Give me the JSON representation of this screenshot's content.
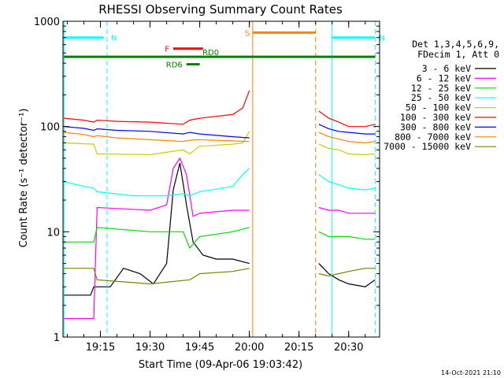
{
  "chart_data": {
    "type": "line",
    "title": "RHESSI Observing Summary Count Rates",
    "xlabel": "Start Time (09-Apr-06 19:03:42)",
    "ylabel": "Count Rate (s⁻¹ detector⁻¹)",
    "yscale": "log",
    "ylim": [
      1,
      1000
    ],
    "xlim": [
      "19:03:42",
      "20:39:20"
    ],
    "yticks": [
      "1",
      "10",
      "100",
      "1000"
    ],
    "xticks": [
      "19:15",
      "19:30",
      "19:45",
      "20:00",
      "20:15",
      "20:30"
    ],
    "grid": false,
    "legend_position": "right",
    "legend_header": [
      "Det 1,3,4,5,6,9,",
      "FDecim 1, Att 0"
    ],
    "series": [
      {
        "name": "3 - 6 keV",
        "color": "#000000",
        "x": [
          "19:04",
          "19:12",
          "19:13",
          "19:18",
          "19:22",
          "19:27",
          "19:31",
          "19:35",
          "19:37",
          "19:39",
          "19:41",
          "19:43",
          "19:46",
          "19:50",
          "19:55",
          "20:00",
          "20:21",
          "20:24",
          "20:27",
          "20:30",
          "20:35",
          "20:38"
        ],
        "y": [
          2.5,
          2.5,
          3,
          3,
          4.5,
          4,
          3.2,
          5,
          25,
          45,
          18,
          8,
          6,
          5.5,
          5.5,
          5,
          5,
          4,
          3.5,
          3.2,
          3,
          3.5
        ]
      },
      {
        "name": "6 - 12 keV",
        "color": "#ff00ff",
        "x": [
          "19:04",
          "19:13",
          "19:14",
          "19:30",
          "19:35",
          "19:37",
          "19:39",
          "19:41",
          "19:43",
          "19:45",
          "19:55",
          "20:00",
          "20:21",
          "20:24",
          "20:27",
          "20:30",
          "20:35",
          "20:38"
        ],
        "y": [
          1.5,
          1.5,
          17,
          16,
          18,
          40,
          50,
          35,
          14,
          15,
          16,
          16,
          17,
          16,
          16,
          15,
          15,
          15
        ]
      },
      {
        "name": "12 - 25 keV",
        "color": "#00dd00",
        "x": [
          "19:04",
          "19:13",
          "19:14",
          "19:30",
          "19:40",
          "19:42",
          "19:45",
          "19:55",
          "20:00",
          "20:21",
          "20:24",
          "20:27",
          "20:30",
          "20:35",
          "20:38"
        ],
        "y": [
          8,
          8,
          11,
          10,
          10,
          7,
          9,
          10,
          11,
          10,
          9,
          9,
          9,
          8.5,
          8.5
        ]
      },
      {
        "name": "25 - 50 keV",
        "color": "#00ffff",
        "x": [
          "19:04",
          "19:10",
          "19:13",
          "19:14",
          "19:25",
          "19:35",
          "19:40",
          "19:42",
          "19:45",
          "19:55",
          "19:58",
          "20:00",
          "20:21",
          "20:24",
          "20:27",
          "20:30",
          "20:35",
          "20:38"
        ],
        "y": [
          30,
          27,
          26,
          24,
          22,
          22,
          23,
          22,
          24,
          27,
          35,
          40,
          35,
          30,
          28,
          26,
          25,
          26
        ]
      },
      {
        "name": "50 - 100 keV",
        "color": "#cccc00",
        "x": [
          "19:04",
          "19:13",
          "19:14",
          "19:30",
          "19:40",
          "19:42",
          "19:45",
          "19:55",
          "19:58",
          "20:00",
          "20:21",
          "20:24",
          "20:27",
          "20:30",
          "20:35",
          "20:38"
        ],
        "y": [
          70,
          68,
          55,
          54,
          60,
          55,
          65,
          68,
          70,
          90,
          68,
          62,
          60,
          55,
          54,
          55
        ]
      },
      {
        "name": "100 - 300 keV",
        "color": "#ff0000",
        "x": [
          "19:04",
          "19:10",
          "19:13",
          "19:14",
          "19:20",
          "19:30",
          "19:40",
          "19:42",
          "19:45",
          "19:55",
          "19:58",
          "20:00",
          "20:21",
          "20:24",
          "20:27",
          "20:30",
          "20:35",
          "20:38"
        ],
        "y": [
          120,
          115,
          110,
          115,
          112,
          110,
          105,
          115,
          120,
          130,
          150,
          220,
          140,
          120,
          110,
          100,
          100,
          105
        ]
      },
      {
        "name": "300 - 800 keV",
        "color": "#0000ff",
        "x": [
          "19:04",
          "19:10",
          "19:13",
          "19:14",
          "19:20",
          "19:30",
          "19:40",
          "19:42",
          "19:45",
          "19:55",
          "20:00",
          "20:21",
          "20:24",
          "20:27",
          "20:30",
          "20:35",
          "20:38"
        ],
        "y": [
          100,
          96,
          92,
          95,
          92,
          90,
          85,
          88,
          85,
          80,
          78,
          105,
          95,
          90,
          88,
          85,
          85
        ]
      },
      {
        "name": "800 - 7000 keV",
        "color": "#ff8000",
        "x": [
          "19:04",
          "19:10",
          "19:13",
          "19:14",
          "19:20",
          "19:30",
          "19:40",
          "19:42",
          "19:45",
          "19:55",
          "20:00",
          "20:21",
          "20:24",
          "20:27",
          "20:30",
          "20:35",
          "20:38"
        ],
        "y": [
          88,
          84,
          80,
          82,
          78,
          75,
          72,
          74,
          75,
          73,
          72,
          88,
          80,
          76,
          72,
          70,
          72
        ]
      },
      {
        "name": "7000 - 15000 keV",
        "color": "#808000",
        "x": [
          "19:04",
          "19:13",
          "19:14",
          "19:30",
          "19:42",
          "19:45",
          "19:55",
          "20:00",
          "20:21",
          "20:24",
          "20:27",
          "20:30",
          "20:35",
          "20:38"
        ],
        "y": [
          4.5,
          4.5,
          3.5,
          3.2,
          3.5,
          4,
          4.2,
          4.5,
          4,
          3.8,
          4,
          4.2,
          4.5,
          4.5
        ]
      }
    ],
    "annotations": {
      "markers": [
        {
          "label": "N",
          "color": "#00ffff",
          "solid_at": "19:04",
          "dashed_at": "19:17",
          "bar_from": "19:04",
          "bar_to": "19:16",
          "bar_y": 700
        },
        {
          "label": "N",
          "color": "#00ffff",
          "solid_at": "20:25",
          "dashed_at": "20:38",
          "bar_from": "20:25",
          "bar_to": "20:38",
          "bar_y": 700
        },
        {
          "label": "S",
          "color": "#ff8000",
          "solid_at": "20:01",
          "dashed_at": "20:20",
          "bar_from": "20:01",
          "bar_to": "20:20",
          "bar_y": 780
        }
      ],
      "flag_bars": [
        {
          "label": "F",
          "color": "#ff0000",
          "x_from": "19:37",
          "x_to": "19:46",
          "y": 550
        },
        {
          "label": "RD0",
          "color": "#008000",
          "x_from": "19:04",
          "x_to": "20:38",
          "y": 460
        },
        {
          "label": "RD6",
          "color": "#008000",
          "x_from": "19:41",
          "x_to": "19:45",
          "y": 390
        }
      ]
    }
  },
  "footer_date": "14-Oct-2021 21:10"
}
